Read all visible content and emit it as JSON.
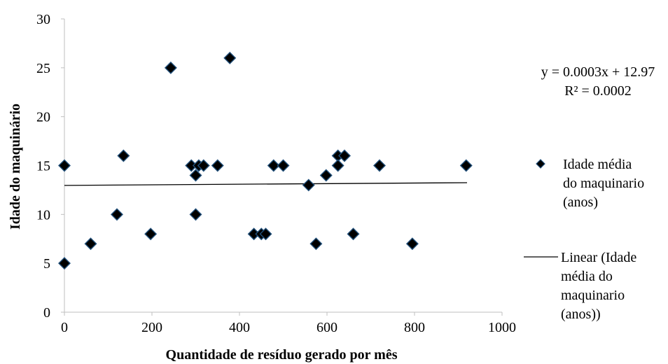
{
  "chart_data": {
    "type": "scatter",
    "xlabel": "Quantidade de resíduo gerado por mês",
    "ylabel": "Idade do maquinário",
    "xlim": [
      0,
      1000
    ],
    "ylim": [
      0,
      30
    ],
    "xticks": [
      0,
      200,
      400,
      600,
      800,
      1000
    ],
    "yticks": [
      0,
      5,
      10,
      15,
      20,
      25,
      30
    ],
    "grid": false,
    "legend_position": "right",
    "series": [
      {
        "name": "Idade média do maquinario (anos)",
        "marker": "diamond",
        "color": "#000000",
        "edge_color": "#1f4e79",
        "points": [
          [
            0,
            15
          ],
          [
            0,
            5
          ],
          [
            60,
            7
          ],
          [
            120,
            10
          ],
          [
            135,
            16
          ],
          [
            197,
            8
          ],
          [
            243,
            25
          ],
          [
            290,
            15
          ],
          [
            300,
            14
          ],
          [
            300,
            10
          ],
          [
            307,
            15
          ],
          [
            318,
            15
          ],
          [
            350,
            15
          ],
          [
            378,
            26
          ],
          [
            433,
            8
          ],
          [
            450,
            8
          ],
          [
            460,
            8
          ],
          [
            478,
            15
          ],
          [
            500,
            15
          ],
          [
            558,
            13
          ],
          [
            575,
            7
          ],
          [
            598,
            14
          ],
          [
            625,
            16
          ],
          [
            625,
            15
          ],
          [
            640,
            16
          ],
          [
            660,
            8
          ],
          [
            720,
            15
          ],
          [
            795,
            7
          ],
          [
            918,
            15
          ]
        ]
      }
    ],
    "trendline": {
      "name": "Linear (Idade média do maquinario (anos))",
      "slope": 0.0003,
      "intercept": 12.97,
      "x_range": [
        0,
        920
      ],
      "equation": "y = 0.0003x + 12.97",
      "r2": "R² = 0.0002"
    },
    "legend": {
      "series_lines": [
        "Idade média",
        "do maquinario",
        "(anos)"
      ],
      "trend_lines": [
        "Linear (Idade",
        "média do",
        "maquinario",
        "(anos))"
      ]
    }
  }
}
